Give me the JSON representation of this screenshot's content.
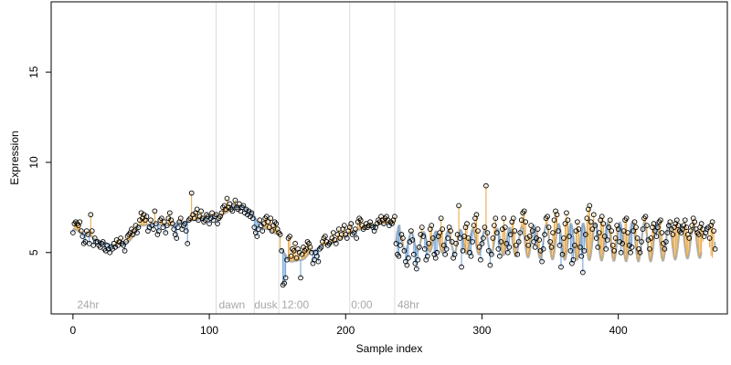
{
  "chart_data": {
    "type": "scatter",
    "xlabel": "Sample index",
    "ylabel": "Expression",
    "xlim": [
      -16,
      480
    ],
    "ylim": [
      1.6,
      18.9
    ],
    "x_ticks": [
      0,
      100,
      200,
      300,
      400
    ],
    "y_ticks": [
      5,
      10,
      15
    ],
    "grid": false,
    "baseline_color": "#6b9ed4",
    "above_color": "#e8a33a",
    "smooth_color": "#a9b3bd",
    "phase_lines": [
      105,
      133,
      151,
      203,
      236
    ],
    "phase_labels": [
      {
        "x": 3,
        "text": "24hr"
      },
      {
        "x": 107,
        "text": "dawn"
      },
      {
        "x": 133,
        "text": "dusk"
      },
      {
        "x": 153,
        "text": "12:00"
      },
      {
        "x": 204,
        "text": "0:00"
      },
      {
        "x": 238,
        "text": "48hr"
      }
    ],
    "series": [
      {
        "segment": [
          0,
          105
        ],
        "smooth": [
          [
            0,
            6.3
          ],
          [
            10,
            6.0
          ],
          [
            20,
            5.6
          ],
          [
            30,
            5.4
          ],
          [
            40,
            5.6
          ],
          [
            50,
            6.5
          ],
          [
            60,
            6.6
          ],
          [
            70,
            6.5
          ],
          [
            80,
            6.7
          ],
          [
            90,
            6.8
          ],
          [
            100,
            7.0
          ],
          [
            105,
            7.0
          ]
        ],
        "y": [
          6.1,
          6.6,
          6.7,
          6.6,
          6.5,
          6.7,
          6.2,
          5.9,
          5.5,
          5.6,
          6.2,
          6.0,
          5.5,
          7.1,
          6.2,
          5.4,
          5.8,
          5.6,
          5.6,
          5.4,
          5.3,
          5.5,
          5.6,
          5.2,
          5.1,
          5.4,
          5.2,
          5.0,
          5.3,
          5.2,
          5.5,
          5.3,
          5.7,
          5.4,
          5.6,
          5.8,
          5.5,
          5.4,
          5.1,
          5.6,
          5.9,
          6.0,
          6.1,
          6.3,
          6.0,
          6.2,
          6.5,
          6.1,
          6.4,
          6.8,
          7.2,
          6.9,
          7.1,
          6.8,
          7.0,
          6.2,
          6.4,
          6.8,
          6.5,
          6.3,
          7.3,
          6.6,
          6.0,
          6.2,
          6.8,
          6.9,
          6.4,
          6.7,
          6.1,
          6.5,
          6.9,
          7.2,
          6.8,
          6.6,
          6.3,
          6.0,
          5.8,
          6.4,
          6.7,
          6.9,
          6.3,
          6.5,
          6.6,
          6.2,
          5.5,
          6.8,
          6.9,
          8.3,
          7.1,
          6.9,
          7.2,
          7.4,
          6.8,
          7.0,
          7.3,
          6.9,
          6.7,
          6.8,
          7.1,
          7.0,
          6.6,
          6.9,
          7.2,
          6.8,
          7.0,
          7.1
        ]
      },
      {
        "segment": [
          106,
          151
        ],
        "smooth": [
          [
            106,
            6.8
          ],
          [
            112,
            7.2
          ],
          [
            118,
            7.6
          ],
          [
            124,
            7.6
          ],
          [
            130,
            7.3
          ],
          [
            136,
            6.7
          ],
          [
            142,
            6.3
          ],
          [
            151,
            6.0
          ]
        ],
        "y": [
          6.6,
          6.9,
          7.0,
          7.2,
          7.5,
          7.6,
          7.4,
          8.0,
          7.5,
          7.7,
          7.4,
          7.3,
          7.6,
          7.9,
          7.5,
          7.4,
          7.7,
          7.3,
          7.5,
          7.6,
          7.2,
          7.4,
          7.1,
          7.3,
          7.0,
          7.2,
          6.9,
          6.4,
          6.1,
          5.9,
          6.3,
          6.8,
          6.5,
          6.2,
          6.6,
          6.9,
          7.0,
          6.7,
          6.4,
          6.9,
          6.2,
          6.5,
          6.7,
          6.6,
          6.3,
          6.1
        ]
      },
      {
        "segment": [
          152,
          203
        ],
        "smooth": [
          [
            152,
            5.2
          ],
          [
            160,
            4.5
          ],
          [
            168,
            4.6
          ],
          [
            176,
            5.1
          ],
          [
            184,
            5.4
          ],
          [
            192,
            5.6
          ],
          [
            203,
            6.0
          ]
        ],
        "y": [
          6.0,
          5.1,
          3.2,
          3.3,
          3.6,
          4.6,
          5.8,
          5.9,
          4.8,
          5.2,
          5.1,
          5.5,
          4.7,
          5.2,
          5.0,
          3.6,
          4.9,
          5.3,
          5.1,
          5.2,
          5.6,
          5.5,
          5.3,
          5.0,
          4.4,
          4.6,
          5.0,
          4.8,
          4.5,
          5.2,
          5.3,
          5.6,
          5.8,
          5.9,
          5.6,
          5.4,
          5.5,
          5.6,
          5.8,
          6.1,
          5.7,
          5.5,
          6.0,
          6.3,
          5.8,
          6.0,
          6.3,
          6.5,
          6.0,
          5.8,
          6.2,
          6.4
        ]
      },
      {
        "segment": [
          204,
          236
        ],
        "smooth": [
          [
            204,
            6.1
          ],
          [
            212,
            6.3
          ],
          [
            220,
            6.5
          ],
          [
            228,
            6.6
          ],
          [
            236,
            6.6
          ]
        ],
        "y": [
          6.6,
          6.0,
          6.1,
          6.3,
          5.8,
          6.7,
          6.9,
          6.8,
          6.5,
          6.3,
          6.4,
          6.6,
          6.4,
          6.5,
          6.7,
          6.5,
          6.4,
          6.2,
          6.4,
          6.6,
          6.8,
          6.7,
          7.0,
          6.8,
          6.6,
          6.9,
          7.0,
          6.8,
          6.5,
          6.7,
          6.6,
          6.8,
          7.0
        ]
      },
      {
        "segment": [
          237,
          461
        ],
        "smooth_wave": {
          "base": 5.6,
          "amp": 0.8,
          "period": 9,
          "amp_peaks": [
            [
              240,
              0.5
            ],
            [
              300,
              0.7
            ],
            [
              360,
              1.0
            ],
            [
              420,
              1.1
            ],
            [
              461,
              0.9
            ]
          ]
        },
        "y": [
          5.5,
          4.9,
          4.8,
          5.4,
          6.0,
          5.8,
          5.1,
          4.5,
          4.3,
          4.7,
          5.6,
          6.2,
          5.7,
          4.9,
          4.4,
          4.1,
          4.6,
          5.3,
          6.0,
          6.4,
          5.9,
          5.2,
          4.6,
          4.8,
          5.5,
          6.3,
          6.5,
          5.8,
          4.9,
          4.7,
          5.0,
          5.9,
          6.1,
          6.9,
          6.3,
          5.4,
          4.9,
          5.2,
          5.8,
          6.4,
          6.2,
          5.6,
          4.7,
          4.9,
          5.5,
          6.0,
          7.6,
          5.8,
          4.2,
          5.1,
          5.9,
          6.4,
          6.6,
          5.8,
          5.0,
          4.8,
          5.6,
          6.5,
          6.9,
          7.1,
          6.2,
          5.3,
          4.6,
          5.5,
          5.8,
          6.4,
          8.7,
          6.1,
          5.1,
          4.3,
          4.9,
          5.8,
          6.5,
          6.9,
          6.1,
          5.2,
          4.8,
          5.6,
          6.3,
          6.9,
          6.4,
          5.5,
          5.0,
          5.3,
          6.0,
          6.7,
          6.9,
          6.2,
          5.4,
          4.9,
          5.6,
          6.1,
          6.8,
          7.2,
          7.3,
          6.7,
          5.8,
          5.4,
          5.9,
          6.5,
          6.2,
          5.6,
          5.3,
          5.8,
          6.3,
          5.7,
          5.1,
          4.5,
          5.2,
          6.0,
          6.9,
          7.0,
          6.4,
          5.6,
          5.3,
          6.1,
          6.8,
          7.3,
          7.1,
          6.2,
          5.4,
          4.2,
          4.9,
          5.8,
          6.6,
          7.2,
          6.8,
          5.9,
          5.1,
          4.4,
          4.6,
          5.4,
          6.2,
          6.7,
          6.3,
          5.3,
          4.8,
          3.9,
          5.1,
          6.0,
          6.9,
          7.4,
          7.6,
          6.7,
          6.3,
          7.1,
          6.5,
          5.8,
          5.3,
          6.1,
          6.8,
          7.0,
          6.6,
          5.9,
          5.2,
          5.7,
          6.4,
          6.8,
          6.2,
          5.4,
          5.1,
          5.8,
          6.5,
          6.3,
          5.6,
          5.0,
          5.5,
          6.2,
          6.8,
          6.9,
          6.1,
          5.4,
          5.0,
          5.3,
          6.2,
          6.7,
          6.4,
          5.8,
          5.2,
          5.0,
          5.6,
          6.3,
          6.9,
          7.0,
          6.5,
          5.7,
          5.2,
          5.8,
          6.4,
          6.6,
          6.2,
          5.9,
          6.4,
          6.7,
          6.8,
          6.1,
          5.5,
          5.2,
          5.6,
          6.1,
          6.5,
          6.7,
          6.3,
          6.0,
          6.4,
          6.6,
          6.8,
          6.5,
          6.2,
          6.1,
          6.3,
          6.5,
          6.8,
          6.4,
          6.0,
          5.8,
          6.2,
          6.5,
          6.9,
          6.7,
          6.3,
          6.1,
          6.0,
          6.4,
          6.6,
          6.3,
          5.9,
          6.1,
          6.3,
          6.4,
          5.8,
          6.5,
          6.7,
          6.2,
          5.2
        ]
      }
    ]
  }
}
